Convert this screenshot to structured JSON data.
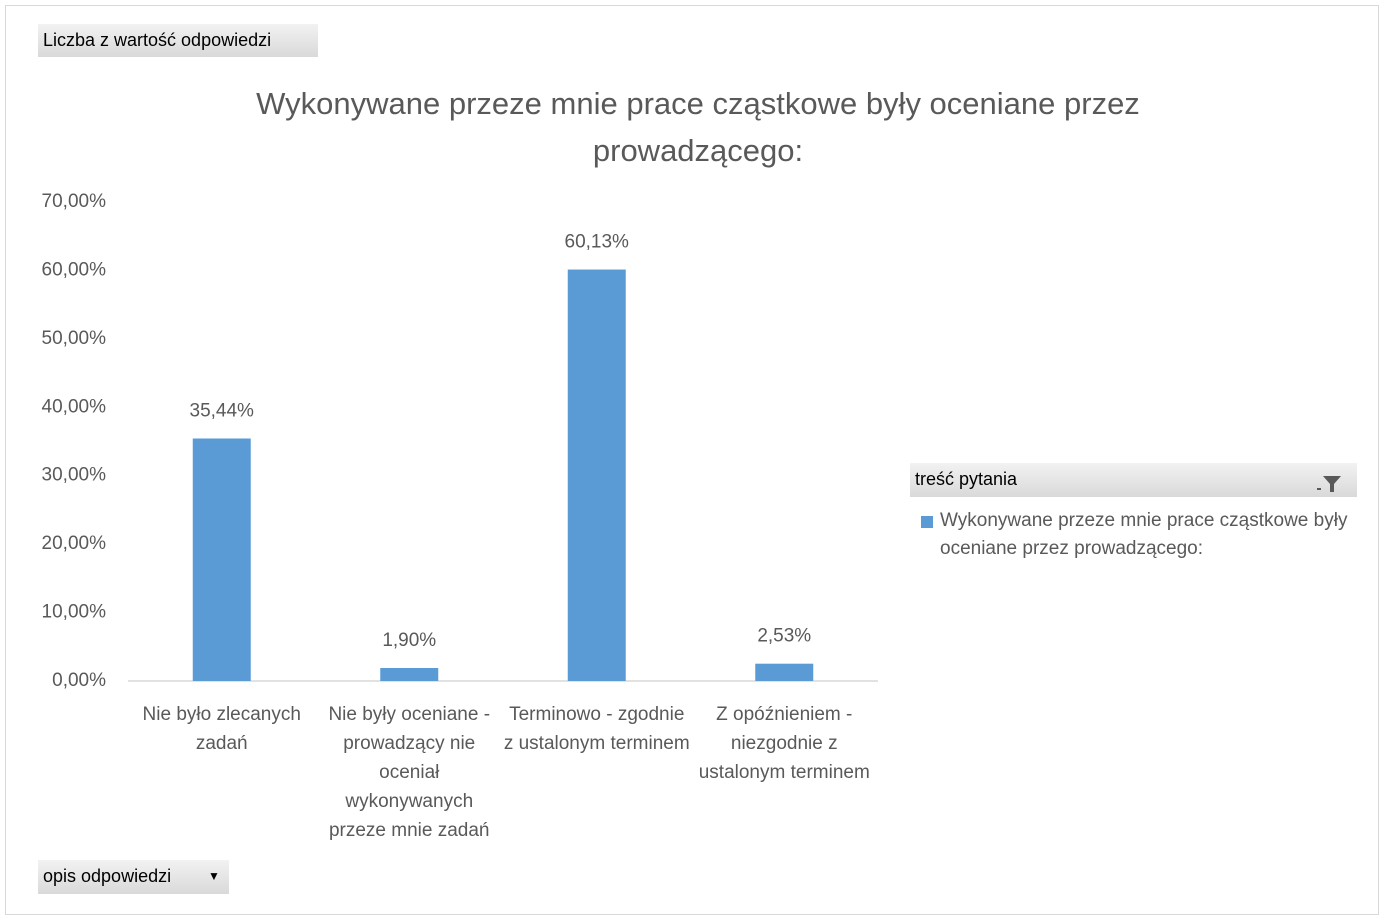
{
  "pivot_buttons": {
    "values_field": "Liczba z wartość odpowiedzi",
    "axis_field": "opis odpowiedzi",
    "legend_field": "treść pytania"
  },
  "chart_data": {
    "type": "bar",
    "title": "Wykonywane przeze mnie prace cząstkowe były oceniane przez prowadzącego:",
    "categories": [
      "Nie było zlecanych zadań",
      "Nie były oceniane - prowadzący nie oceniał wykonywanych przeze mnie zadań",
      "Terminowo - zgodnie z ustalonym terminem",
      "Z opóźnieniem - niezgodnie z ustalonym terminem"
    ],
    "series": [
      {
        "name": "Wykonywane przeze mnie prace cząstkowe były oceniane przez prowadzącego:",
        "color": "#5b9bd5",
        "values": [
          35.44,
          1.9,
          60.13,
          2.53
        ],
        "value_labels": [
          "35,44%",
          "1,90%",
          "60,13%",
          "2,53%"
        ]
      }
    ],
    "ylim": [
      0,
      70
    ],
    "yticks": [
      {
        "value": 0,
        "label": "0,00%"
      },
      {
        "value": 10,
        "label": "10,00%"
      },
      {
        "value": 20,
        "label": "20,00%"
      },
      {
        "value": 30,
        "label": "30,00%"
      },
      {
        "value": 40,
        "label": "40,00%"
      },
      {
        "value": 50,
        "label": "50,00%"
      },
      {
        "value": 60,
        "label": "60,00%"
      },
      {
        "value": 70,
        "label": "70,00%"
      }
    ],
    "grid": false,
    "legend": "right"
  }
}
